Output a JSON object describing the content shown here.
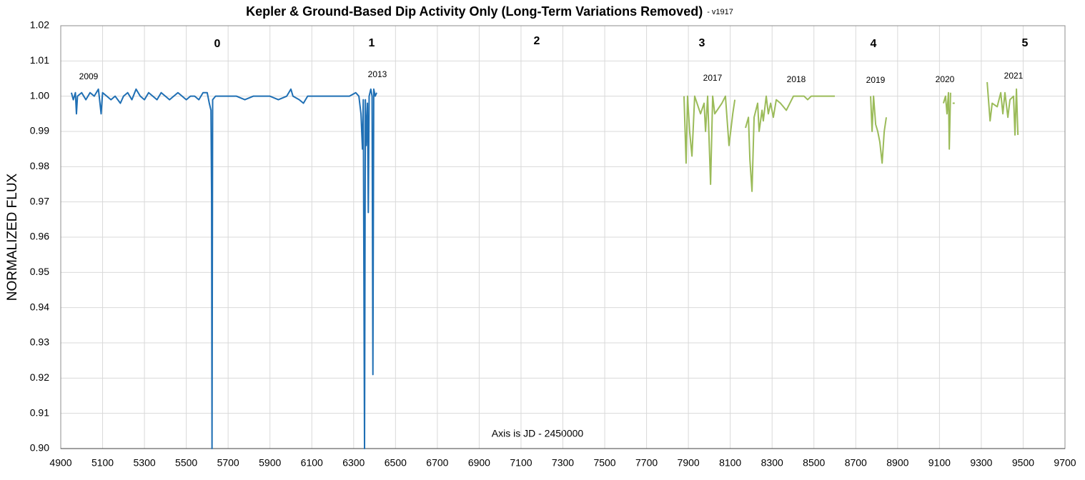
{
  "chart_data": {
    "type": "line",
    "title": "Kepler & Ground-Based Dip Activity Only (Long-Term Variations Removed)",
    "subtitle": "- v1917",
    "y_label": "NORMALIZED FLUX",
    "x_note": "Axis is JD - 2450000",
    "annotations": [
      "0",
      "1",
      "2",
      "3",
      "4",
      "5"
    ],
    "year_labels": [
      "2009",
      "2013",
      "2017",
      "2018",
      "2019",
      "2020",
      "2021"
    ],
    "xlim": [
      4900,
      9700
    ],
    "xticks": [
      4900,
      5100,
      5300,
      5500,
      5700,
      5900,
      6100,
      6300,
      6500,
      6700,
      6900,
      7100,
      7300,
      7500,
      7700,
      7900,
      8100,
      8300,
      8500,
      8700,
      8900,
      9100,
      9300,
      9500,
      9700
    ],
    "ylim": [
      0.9,
      1.02
    ],
    "yticks": [
      1.02,
      1.01,
      {
        "value": 1,
        "label": "1.00"
      },
      0.99,
      0.98,
      0.97,
      0.96,
      0.95,
      0.94,
      0.93,
      0.92,
      0.91,
      {
        "value": 0.9,
        "label": "0.90"
      }
    ],
    "grid": true,
    "series": [
      {
        "color": "#1f6fb4",
        "x": [
          4951,
          4960,
          4970,
          4975,
          4980,
          5000,
          5020,
          5040,
          5060,
          5080,
          5093,
          5100,
          5120,
          5140,
          5160,
          5185,
          5200,
          5220,
          5240,
          5260,
          5280,
          5300,
          5320,
          5340,
          5360,
          5380,
          5400,
          5420,
          5440,
          5460,
          5480,
          5500,
          5520,
          5540,
          5560,
          5580,
          5600,
          5610,
          5618,
          5621,
          5623,
          5626,
          5640,
          5660,
          5700,
          5740,
          5780,
          5820,
          5860,
          5900,
          5940,
          5980,
          6000,
          6010,
          6040,
          6060,
          6080,
          6120,
          6160,
          6200,
          6240,
          6280,
          6310,
          6325,
          6335,
          6342,
          6346,
          6352,
          6356,
          6360,
          6366,
          6370,
          6374,
          6382,
          6388,
          6392,
          6396,
          6403,
          6410
        ],
        "values": [
          1.001,
          0.999,
          1.001,
          0.995,
          1.0,
          1.001,
          0.999,
          1.001,
          1.0,
          1.002,
          0.995,
          1.001,
          1.0,
          0.999,
          1.0,
          0.998,
          1.0,
          1.001,
          0.999,
          1.002,
          1.0,
          0.999,
          1.001,
          1.0,
          0.999,
          1.001,
          1.0,
          0.999,
          1.0,
          1.001,
          1.0,
          0.999,
          1.0,
          1.0,
          0.999,
          1.001,
          1.001,
          0.998,
          0.996,
          0.972,
          0.9,
          0.999,
          1.0,
          1.0,
          1.0,
          1.0,
          0.999,
          1.0,
          1.0,
          1.0,
          0.999,
          1.0,
          1.002,
          1.0,
          0.999,
          0.998,
          1.0,
          1.0,
          1.0,
          1.0,
          1.0,
          1.0,
          1.001,
          1.0,
          0.995,
          0.985,
          0.999,
          0.9,
          0.999,
          0.986,
          0.998,
          0.967,
          1.0,
          1.002,
          1.0,
          0.921,
          1.002,
          1.0,
          1.001
        ]
      },
      {
        "color": "#9bbb59",
        "x": [
          7879,
          7889,
          7896,
          7906,
          7917,
          7930,
          7958,
          7975,
          7982,
          7992,
          8006,
          8016,
          8026,
          8060,
          8077,
          8094,
          8112,
          8122,
          8150,
          8173,
          8187,
          8194,
          8204,
          8214,
          8231,
          8238,
          8252,
          8258,
          8272,
          8282,
          8293,
          8306,
          8320,
          8340,
          8368,
          8385,
          8402,
          8453,
          8470,
          8487,
          8600,
          8700,
          8771,
          8778,
          8785,
          8795,
          8805,
          8815,
          8826,
          8836,
          8846,
          9000,
          9119,
          9129,
          9136,
          9143,
          9147,
          9153,
          9158,
          9163,
          9173,
          9250,
          9328,
          9342,
          9352,
          9376,
          9393,
          9403,
          9413,
          9427,
          9437,
          9454,
          9461,
          9468,
          9475
        ],
        "values": [
          1.0,
          0.981,
          1.0,
          0.99,
          0.983,
          1.0,
          0.995,
          0.998,
          0.99,
          1.0,
          0.975,
          1.0,
          0.995,
          0.998,
          1.0,
          0.986,
          0.995,
          0.999,
          null,
          0.991,
          0.994,
          0.982,
          0.973,
          0.994,
          0.998,
          0.99,
          0.996,
          0.993,
          1.0,
          0.995,
          0.998,
          0.994,
          0.999,
          0.998,
          0.996,
          0.998,
          1.0,
          1.0,
          0.999,
          1.0,
          1.0,
          null,
          1.0,
          0.99,
          1.0,
          0.992,
          0.99,
          0.987,
          0.981,
          0.99,
          0.994,
          null,
          0.998,
          1.0,
          0.995,
          1.001,
          0.985,
          1.001,
          null,
          0.998,
          0.998,
          null,
          1.004,
          0.993,
          0.998,
          0.997,
          1.001,
          0.995,
          1.001,
          0.994,
          0.999,
          1.0,
          0.989,
          1.002,
          0.989
        ]
      }
    ]
  }
}
